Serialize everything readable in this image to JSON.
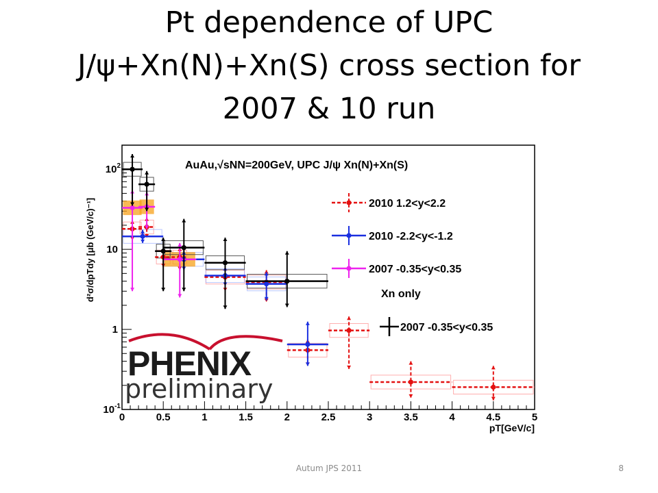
{
  "slide": {
    "title_lines": [
      "Pt dependence of UPC",
      "J/ψ+Xn(N)+Xn(S) cross section for",
      "2007 & 10 run"
    ],
    "footer": "Autum JPS 2011",
    "page_number": "8"
  },
  "logo": {
    "wordmark": "PHENIX",
    "subtitle": "preliminary"
  },
  "chart_data": {
    "type": "scatter",
    "title": "AuAu,√sNN=200GeV, UPC J/ψ Xn(N)+Xn(S)",
    "xlabel": "pT[GeV/c]",
    "ylabel": "d²σ/dpTdy [μb (GeV/c)⁻¹]",
    "xlim": [
      0,
      5
    ],
    "ylim": [
      0.1,
      200
    ],
    "yscale": "log",
    "x_ticks": [
      "0",
      "0.5",
      "1",
      "1.5",
      "2",
      "2.5",
      "3",
      "3.5",
      "4",
      "4.5",
      "5"
    ],
    "y_ticks": [
      {
        "value": 0.1,
        "base": "10",
        "exp": "-1"
      },
      {
        "value": 1,
        "base": "1",
        "exp": ""
      },
      {
        "value": 10,
        "base": "10",
        "exp": ""
      },
      {
        "value": 100,
        "base": "10",
        "exp": "2"
      }
    ],
    "legend_position": "right",
    "legend_note": "Xn only",
    "series": [
      {
        "name": "2010 1.2<y<2.2",
        "color": "#e41010",
        "style": "dashed",
        "points": [
          {
            "x": 0.125,
            "y": 18,
            "xerr": 0.125,
            "ylo": 13,
            "yhi": 23
          },
          {
            "x": 0.3,
            "y": 19,
            "xerr": 0.1,
            "ylo": 14,
            "yhi": 25
          },
          {
            "x": 0.5,
            "y": 8.0,
            "xerr": 0.1,
            "ylo": 6.0,
            "yhi": 10
          },
          {
            "x": 0.7,
            "y": 8.0,
            "xerr": 0.1,
            "ylo": 5.5,
            "yhi": 10.5
          },
          {
            "x": 1.25,
            "y": 4.5,
            "xerr": 0.25,
            "ylo": 3.0,
            "yhi": 6.0
          },
          {
            "x": 1.75,
            "y": 3.9,
            "xerr": 0.25,
            "ylo": 2.2,
            "yhi": 5.5
          },
          {
            "x": 2.25,
            "y": 0.55,
            "xerr": 0.25,
            "ylo": 0.35,
            "yhi": 0.75
          },
          {
            "x": 2.75,
            "y": 0.97,
            "xerr": 0.25,
            "ylo": 0.32,
            "yhi": 1.45
          },
          {
            "x": 3.5,
            "y": 0.22,
            "xerr": 0.5,
            "ylo": 0.14,
            "yhi": 0.4
          },
          {
            "x": 4.5,
            "y": 0.19,
            "xerr": 0.5,
            "ylo": 0.13,
            "yhi": 0.35
          }
        ]
      },
      {
        "name": "2010 -2.2<y<-1.2",
        "color": "#1a2fe0",
        "style": "solid",
        "points": [
          {
            "x": 0.25,
            "y": 14.5,
            "xerr": 0.25,
            "ylo": 12,
            "yhi": 17.5
          },
          {
            "x": 0.75,
            "y": 7.5,
            "xerr": 0.25,
            "ylo": 5.5,
            "yhi": 9.5
          },
          {
            "x": 1.25,
            "y": 4.7,
            "xerr": 0.25,
            "ylo": 3.5,
            "yhi": 6.0
          },
          {
            "x": 1.75,
            "y": 3.7,
            "xerr": 0.25,
            "ylo": 2.3,
            "yhi": 5.2
          },
          {
            "x": 2.25,
            "y": 0.65,
            "xerr": 0.25,
            "ylo": 0.35,
            "yhi": 1.25
          }
        ]
      },
      {
        "name": "2007 -0.35<y<0.35",
        "color": "#ee22ee",
        "style": "solid",
        "points": [
          {
            "x": 0.125,
            "y": 33,
            "xerr": 0.125,
            "ylo": 3.0,
            "yhi": 55
          },
          {
            "x": 0.3,
            "y": 34,
            "xerr": 0.1,
            "ylo": 18,
            "yhi": 52
          },
          {
            "x": 0.7,
            "y": 7.5,
            "xerr": 0.2,
            "ylo": 2.5,
            "yhi": 12
          }
        ]
      },
      {
        "name": "2007 -0.35<y<0.35",
        "color": "#000000",
        "style": "solid",
        "note": "Xn only",
        "points": [
          {
            "x": 0.125,
            "y": 100,
            "xerr": 0.125,
            "ylo": 35,
            "yhi": 155
          },
          {
            "x": 0.3,
            "y": 65,
            "xerr": 0.1,
            "ylo": 30,
            "yhi": 95
          },
          {
            "x": 0.5,
            "y": 9.5,
            "xerr": 0.1,
            "ylo": 3.0,
            "yhi": 14
          },
          {
            "x": 0.75,
            "y": 10.5,
            "xerr": 0.25,
            "ylo": 3.0,
            "yhi": 24
          },
          {
            "x": 1.25,
            "y": 6.8,
            "xerr": 0.25,
            "ylo": 1.8,
            "yhi": 14
          },
          {
            "x": 2.0,
            "y": 4.0,
            "xerr": 0.5,
            "ylo": 1.9,
            "yhi": 9.5
          }
        ]
      }
    ]
  }
}
